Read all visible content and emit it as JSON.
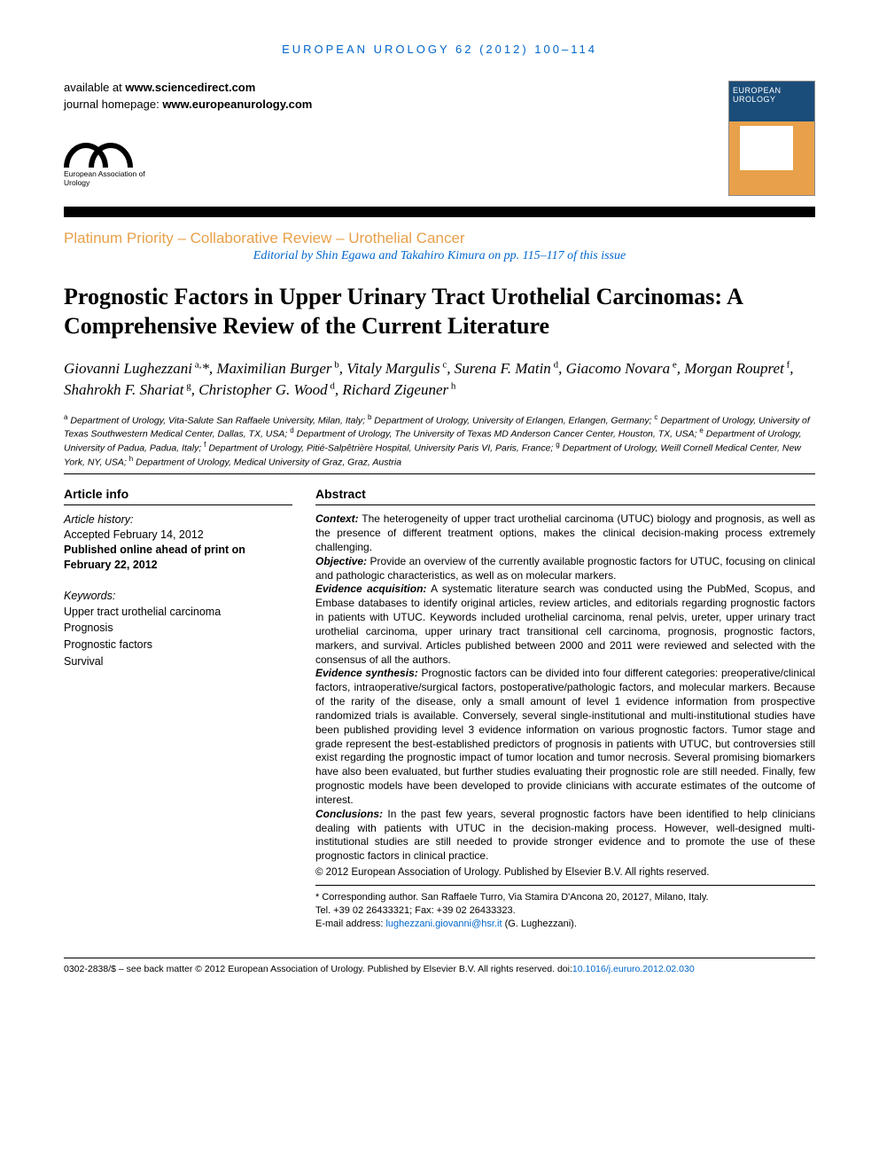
{
  "journal_ref": "EUROPEAN UROLOGY 62 (2012) 100–114",
  "header": {
    "available_prefix": "available at ",
    "available_site": "www.sciencedirect.com",
    "homepage_prefix": "journal homepage: ",
    "homepage_site": "www.europeanurology.com",
    "logo_caption": "European Association of Urology",
    "cover_title": "EUROPEAN UROLOGY"
  },
  "section_type": "Platinum Priority – Collaborative Review – Urothelial Cancer",
  "editorial_note": "Editorial by Shin Egawa and Takahiro Kimura on pp. 115–117 of this issue",
  "title": "Prognostic Factors in Upper Urinary Tract Urothelial Carcinomas: A Comprehensive Review of the Current Literature",
  "authors_html": "Giovanni Lughezzani<sup> a,</sup>*, Maximilian Burger<sup> b</sup>, Vitaly Margulis<sup> c</sup>, Surena F. Matin<sup> d</sup>, Giacomo Novara<sup> e</sup>, Morgan Roupret<sup> f</sup>, Shahrokh F. Shariat<sup> g</sup>, Christopher G. Wood<sup> d</sup>, Richard Zigeuner<sup> h</sup>",
  "affiliations_html": "<sup>a</sup> Department of Urology, Vita-Salute San Raffaele University, Milan, Italy; <sup>b</sup> Department of Urology, University of Erlangen, Erlangen, Germany; <sup>c</sup> Department of Urology, University of Texas Southwestern Medical Center, Dallas, TX, USA; <sup>d</sup> Department of Urology, The University of Texas MD Anderson Cancer Center, Houston, TX, USA; <sup>e</sup> Department of Urology, University of Padua, Padua, Italy; <sup>f</sup> Department of Urology, Pitié-Salpêtrière Hospital, University Paris VI, Paris, France; <sup>g</sup> Department of Urology, Weill Cornell Medical Center, New York, NY, USA; <sup>h</sup> Department of Urology, Medical University of Graz, Graz, Austria",
  "article_info": {
    "heading": "Article info",
    "history_label": "Article history:",
    "accepted": "Accepted February 14, 2012",
    "published": "Published online ahead of print on February 22, 2012",
    "keywords_label": "Keywords:",
    "keywords": [
      "Upper tract urothelial carcinoma",
      "Prognosis",
      "Prognostic factors",
      "Survival"
    ]
  },
  "abstract": {
    "heading": "Abstract",
    "sections": [
      {
        "label": "Context:",
        "text": " The heterogeneity of upper tract urothelial carcinoma (UTUC) biology and prognosis, as well as the presence of different treatment options, makes the clinical decision-making process extremely challenging."
      },
      {
        "label": "Objective:",
        "text": " Provide an overview of the currently available prognostic factors for UTUC, focusing on clinical and pathologic characteristics, as well as on molecular markers."
      },
      {
        "label": "Evidence acquisition:",
        "text": " A systematic literature search was conducted using the PubMed, Scopus, and Embase databases to identify original articles, review articles, and editorials regarding prognostic factors in patients with UTUC. Keywords included urothelial carcinoma, renal pelvis, ureter, upper urinary tract urothelial carcinoma, upper urinary tract transitional cell carcinoma, prognosis, prognostic factors, markers, and survival. Articles published between 2000 and 2011 were reviewed and selected with the consensus of all the authors."
      },
      {
        "label": "Evidence synthesis:",
        "text": " Prognostic factors can be divided into four different categories: preoperative/clinical factors, intraoperative/surgical factors, postoperative/pathologic factors, and molecular markers. Because of the rarity of the disease, only a small amount of level 1 evidence information from prospective randomized trials is available. Conversely, several single-institutional and multi-institutional studies have been published providing level 3 evidence information on various prognostic factors. Tumor stage and grade represent the best-established predictors of prognosis in patients with UTUC, but controversies still exist regarding the prognostic impact of tumor location and tumor necrosis. Several promising biomarkers have also been evaluated, but further studies evaluating their prognostic role are still needed. Finally, few prognostic models have been developed to provide clinicians with accurate estimates of the outcome of interest."
      },
      {
        "label": "Conclusions:",
        "text": " In the past few years, several prognostic factors have been identified to help clinicians dealing with patients with UTUC in the decision-making process. However, well-designed multi-institutional studies are still needed to provide stronger evidence and to promote the use of these prognostic factors in clinical practice."
      }
    ],
    "copyright": "© 2012 European Association of Urology. Published by Elsevier B.V. All rights reserved."
  },
  "corresponding": {
    "line1": "* Corresponding author. San Raffaele Turro, Via Stamira D'Ancona 20, 20127, Milano, Italy.",
    "line2": "Tel. +39 02 26433321; Fax: +39 02 26433323.",
    "email_label": "E-mail address: ",
    "email": "lughezzani.giovanni@hsr.it",
    "email_suffix": " (G. Lughezzani)."
  },
  "footer": {
    "text_prefix": "0302-2838/$ – see back matter © 2012 European Association of Urology. Published by Elsevier B.V. All rights reserved.  doi:",
    "doi": "10.1016/j.eururo.2012.02.030"
  },
  "colors": {
    "link": "#0066cc",
    "accent": "#e8a04a",
    "text": "#000000",
    "cover_top": "#1a4d7a"
  }
}
